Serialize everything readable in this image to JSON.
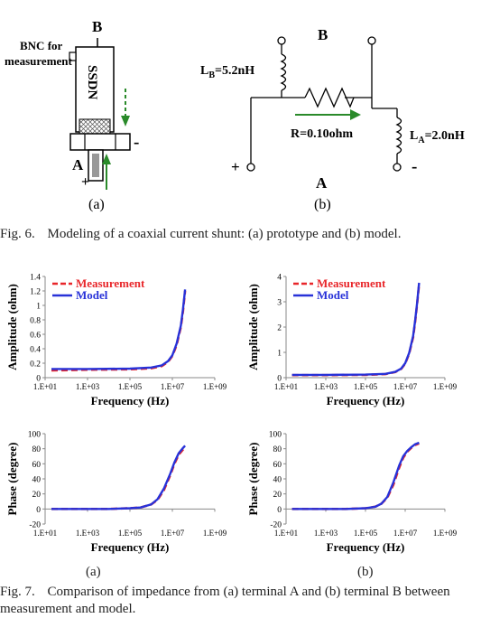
{
  "fig6": {
    "prototype": {
      "label_b": "B",
      "bnc_line1": "BNC for",
      "bnc_line2": "measurement",
      "body_text": "SSDN",
      "label_a": "A",
      "plus": "+",
      "minus": "-",
      "sublabel": "(a)"
    },
    "model": {
      "label_b": "B",
      "lb_prefix": "L",
      "lb_sub": "B",
      "lb_value": "=5.2nH",
      "r_label": "R=0.10ohm",
      "la_prefix": "L",
      "la_sub": "A",
      "la_value": "=2.0nH",
      "label_a": "A",
      "plus": "+",
      "minus": "-",
      "sublabel": "(b)"
    },
    "caption_label": "Fig. 6.",
    "caption_text": "Modeling of a coaxial current shunt: (a) prototype and (b) model."
  },
  "fig7": {
    "caption_label": "Fig. 7.",
    "caption_text": "Comparison of impedance from (a) terminal A and (b) terminal B between measurement and model.",
    "sublabel_a": "(a)",
    "sublabel_b": "(b)"
  },
  "colors": {
    "measurement": "#e8262a",
    "model": "#2832d8"
  },
  "chart_data": [
    {
      "type": "line",
      "panel": "a-amplitude",
      "title": "",
      "xlabel": "Frequency (Hz)",
      "ylabel": "Amplitude (ohm)",
      "xscale": "log",
      "xlim_exp": [
        1,
        9
      ],
      "xticks": [
        "1.E+01",
        "1.E+03",
        "1.E+05",
        "1.E+07",
        "1.E+09"
      ],
      "ylim": [
        0,
        1.4
      ],
      "yticks": [
        "0",
        "0.2",
        "0.4",
        "0.6",
        "0.8",
        "1",
        "1.2",
        "1.4"
      ],
      "legend": [
        "Measurement",
        "Model"
      ],
      "legend_position": "top-left",
      "series": [
        {
          "name": "Measurement",
          "x_exp": [
            1.3,
            3,
            5,
            6,
            6.5,
            6.8,
            7,
            7.2,
            7.4,
            7.5,
            7.6
          ],
          "values": [
            0.1,
            0.11,
            0.115,
            0.13,
            0.16,
            0.22,
            0.3,
            0.45,
            0.7,
            0.92,
            1.2
          ]
        },
        {
          "name": "Model",
          "x_exp": [
            1.3,
            3,
            5,
            6,
            6.5,
            6.8,
            7,
            7.2,
            7.4,
            7.5,
            7.6
          ],
          "values": [
            0.12,
            0.12,
            0.125,
            0.14,
            0.17,
            0.23,
            0.31,
            0.47,
            0.72,
            0.95,
            1.22
          ]
        }
      ]
    },
    {
      "type": "line",
      "panel": "b-amplitude",
      "title": "",
      "xlabel": "Frequency (Hz)",
      "ylabel": "Amplitude (ohm)",
      "xscale": "log",
      "xlim_exp": [
        1,
        9
      ],
      "xticks": [
        "1.E+01",
        "1.E+03",
        "1.E+05",
        "1.E+07",
        "1.E+09"
      ],
      "ylim": [
        0,
        4
      ],
      "yticks": [
        "0",
        "1",
        "2",
        "3",
        "4"
      ],
      "legend": [
        "Measurement",
        "Model"
      ],
      "legend_position": "top-left",
      "series": [
        {
          "name": "Measurement",
          "x_exp": [
            1.3,
            3,
            5,
            6,
            6.5,
            6.8,
            7,
            7.2,
            7.4,
            7.5,
            7.6,
            7.7
          ],
          "values": [
            0.1,
            0.1,
            0.11,
            0.14,
            0.22,
            0.35,
            0.55,
            0.95,
            1.6,
            2.2,
            2.9,
            3.7
          ]
        },
        {
          "name": "Model",
          "x_exp": [
            1.3,
            3,
            5,
            6,
            6.5,
            6.8,
            7,
            7.2,
            7.4,
            7.5,
            7.6,
            7.7
          ],
          "values": [
            0.11,
            0.11,
            0.12,
            0.15,
            0.23,
            0.36,
            0.57,
            0.98,
            1.65,
            2.25,
            2.95,
            3.75
          ]
        }
      ]
    },
    {
      "type": "line",
      "panel": "a-phase",
      "title": "",
      "xlabel": "Frequency (Hz)",
      "ylabel": "Phase (degree)",
      "xscale": "log",
      "xlim_exp": [
        1,
        9
      ],
      "xticks": [
        "1.E+01",
        "1.E+03",
        "1.E+05",
        "1.E+07",
        "1.E+09"
      ],
      "ylim": [
        -20,
        100
      ],
      "yticks": [
        "-20",
        "0",
        "20",
        "40",
        "60",
        "80",
        "100"
      ],
      "legend": [],
      "series": [
        {
          "name": "Measurement",
          "x_exp": [
            1.3,
            3,
            4,
            5,
            5.5,
            6,
            6.3,
            6.6,
            6.9,
            7.1,
            7.3,
            7.5,
            7.6
          ],
          "values": [
            0,
            0,
            0,
            1,
            2,
            6,
            12,
            25,
            45,
            60,
            72,
            79,
            82
          ]
        },
        {
          "name": "Model",
          "x_exp": [
            1.3,
            3,
            4,
            5,
            5.5,
            6,
            6.3,
            6.6,
            6.9,
            7.1,
            7.3,
            7.5,
            7.6
          ],
          "values": [
            0,
            0,
            0,
            1,
            2,
            6,
            13,
            27,
            47,
            62,
            74,
            81,
            84
          ]
        }
      ]
    },
    {
      "type": "line",
      "panel": "b-phase",
      "title": "",
      "xlabel": "Frequency (Hz)",
      "ylabel": "Phase (degree)",
      "xscale": "log",
      "xlim_exp": [
        1,
        9
      ],
      "xticks": [
        "1.E+01",
        "1.E+03",
        "1.E+05",
        "1.E+07",
        "1.E+09"
      ],
      "ylim": [
        -20,
        100
      ],
      "yticks": [
        "-20",
        "0",
        "20",
        "40",
        "60",
        "80",
        "100"
      ],
      "legend": [],
      "series": [
        {
          "name": "Measurement",
          "x_exp": [
            1.3,
            3,
            4,
            5,
            5.5,
            5.8,
            6.1,
            6.4,
            6.7,
            6.9,
            7.1,
            7.3,
            7.5,
            7.7
          ],
          "values": [
            0,
            0,
            0,
            1,
            3,
            7,
            15,
            32,
            55,
            68,
            76,
            81,
            85,
            87
          ]
        },
        {
          "name": "Model",
          "x_exp": [
            1.3,
            3,
            4,
            5,
            5.5,
            5.8,
            6.1,
            6.4,
            6.7,
            6.9,
            7.1,
            7.3,
            7.5,
            7.7
          ],
          "values": [
            0,
            0,
            0,
            1,
            3,
            7,
            16,
            35,
            58,
            70,
            77,
            82,
            86,
            88
          ]
        }
      ]
    }
  ]
}
